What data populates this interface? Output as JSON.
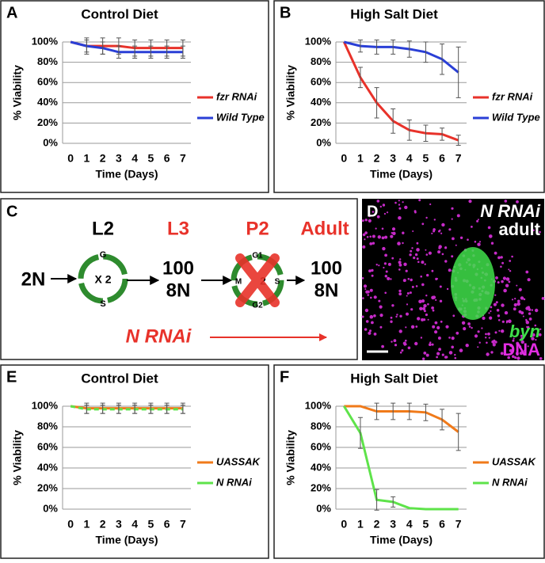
{
  "chart_data": [
    {
      "type": "line",
      "label": "A",
      "title": "Control Diet",
      "xlabel": "Time (Days)",
      "ylabel": "% Viability",
      "x": [
        0,
        1,
        2,
        3,
        4,
        5,
        6,
        7
      ],
      "xlim": [
        -0.5,
        7.5
      ],
      "xticks": [
        0,
        1,
        2,
        3,
        4,
        5,
        6,
        7
      ],
      "ylim": [
        0,
        100
      ],
      "yticks": [
        {
          "value": 0,
          "label": "0%"
        },
        {
          "value": 20,
          "label": "20%"
        },
        {
          "value": 40,
          "label": "40%"
        },
        {
          "value": 60,
          "label": "60%"
        },
        {
          "value": 80,
          "label": "80%"
        },
        {
          "value": 100,
          "label": "100%"
        }
      ],
      "grid": true,
      "legend": "right",
      "series": [
        {
          "name": "fzr RNAi",
          "color": "#e8322a",
          "values": [
            100,
            96,
            96,
            96,
            94,
            94,
            94,
            94
          ],
          "errors": [
            0,
            8,
            8,
            8,
            8,
            8,
            8,
            8
          ]
        },
        {
          "name": "Wild Type",
          "color": "#2a3fd6",
          "values": [
            100,
            96,
            94,
            90,
            90,
            90,
            90,
            90
          ],
          "errors": [
            0,
            6,
            6,
            6,
            6,
            6,
            6,
            6
          ]
        }
      ]
    },
    {
      "type": "line",
      "label": "B",
      "title": "High Salt Diet",
      "xlabel": "Time (Days)",
      "ylabel": "% Viability",
      "x": [
        0,
        1,
        2,
        3,
        4,
        5,
        6,
        7
      ],
      "xlim": [
        -0.5,
        7.5
      ],
      "xticks": [
        0,
        1,
        2,
        3,
        4,
        5,
        6,
        7
      ],
      "ylim": [
        0,
        100
      ],
      "yticks": [
        {
          "value": 0,
          "label": "0%"
        },
        {
          "value": 20,
          "label": "20%"
        },
        {
          "value": 40,
          "label": "40%"
        },
        {
          "value": 60,
          "label": "60%"
        },
        {
          "value": 80,
          "label": "80%"
        },
        {
          "value": 100,
          "label": "100%"
        }
      ],
      "grid": true,
      "legend": "right",
      "series": [
        {
          "name": "fzr RNAi",
          "color": "#e8322a",
          "values": [
            100,
            65,
            40,
            22,
            13,
            10,
            9,
            3
          ],
          "errors": [
            0,
            10,
            15,
            12,
            10,
            8,
            6,
            5
          ]
        },
        {
          "name": "Wild Type",
          "color": "#2a3fd6",
          "values": [
            100,
            96,
            95,
            95,
            93,
            90,
            83,
            70
          ],
          "errors": [
            0,
            6,
            7,
            7,
            8,
            10,
            15,
            25
          ]
        }
      ]
    },
    {
      "type": "line",
      "label": "E",
      "title": "Control Diet",
      "xlabel": "Time (Days)",
      "ylabel": "% Viability",
      "x": [
        0,
        1,
        2,
        3,
        4,
        5,
        6,
        7
      ],
      "xlim": [
        -0.5,
        7.5
      ],
      "xticks": [
        0,
        1,
        2,
        3,
        4,
        5,
        6,
        7
      ],
      "ylim": [
        0,
        100
      ],
      "yticks": [
        {
          "value": 0,
          "label": "0%"
        },
        {
          "value": 20,
          "label": "20%"
        },
        {
          "value": 40,
          "label": "40%"
        },
        {
          "value": 60,
          "label": "60%"
        },
        {
          "value": 80,
          "label": "80%"
        },
        {
          "value": 100,
          "label": "100%"
        }
      ],
      "grid": true,
      "legend": "right",
      "series": [
        {
          "name": "UASSAK",
          "color": "#f07a1a",
          "values": [
            100,
            98,
            98,
            98,
            98,
            98,
            98,
            98
          ],
          "errors": [
            0,
            5,
            5,
            5,
            5,
            5,
            5,
            5
          ]
        },
        {
          "name": "N RNAi",
          "color": "#5ee34a",
          "line_style": "dashed",
          "values": [
            100,
            97,
            97,
            97,
            97,
            97,
            97,
            97
          ],
          "errors": [
            0,
            4,
            4,
            4,
            4,
            4,
            4,
            4
          ]
        }
      ]
    },
    {
      "type": "line",
      "label": "F",
      "title": "High Salt Diet",
      "xlabel": "Time (Days)",
      "ylabel": "% Viability",
      "x": [
        0,
        1,
        2,
        3,
        4,
        5,
        6,
        7
      ],
      "xlim": [
        -0.5,
        7.5
      ],
      "xticks": [
        0,
        1,
        2,
        3,
        4,
        5,
        6,
        7
      ],
      "ylim": [
        0,
        100
      ],
      "yticks": [
        {
          "value": 0,
          "label": "0%"
        },
        {
          "value": 20,
          "label": "20%"
        },
        {
          "value": 40,
          "label": "40%"
        },
        {
          "value": 60,
          "label": "60%"
        },
        {
          "value": 80,
          "label": "80%"
        },
        {
          "value": 100,
          "label": "100%"
        }
      ],
      "grid": true,
      "legend": "right",
      "series": [
        {
          "name": "UASSAK",
          "color": "#f07a1a",
          "values": [
            100,
            100,
            95,
            95,
            95,
            94,
            87,
            75
          ],
          "errors": [
            0,
            0,
            8,
            8,
            8,
            8,
            10,
            18
          ]
        },
        {
          "name": "N RNAi",
          "color": "#5ee34a",
          "values": [
            100,
            74,
            9,
            7,
            1,
            0,
            0,
            0
          ],
          "errors": [
            0,
            15,
            10,
            5,
            0,
            0,
            0,
            0
          ]
        }
      ]
    }
  ],
  "diagram": {
    "label": "C",
    "stages": [
      "L2",
      "L3",
      "P2",
      "Adult"
    ],
    "start": "2N",
    "cycle_1": {
      "center": "X 2",
      "top": "G",
      "bottom": "S"
    },
    "count_1": "100",
    "ploidy_1": "8N",
    "cycle_2": {
      "center": "2",
      "top": "G1",
      "bottom": "G2",
      "left": "M",
      "right": "S"
    },
    "count_2": "100",
    "ploidy_2": "8N",
    "treatment": "N RNAi"
  },
  "image": {
    "label": "D",
    "title_1": "N RNAi",
    "title_2": "adult",
    "stain_1": "byn",
    "stain_2": "DNA"
  }
}
